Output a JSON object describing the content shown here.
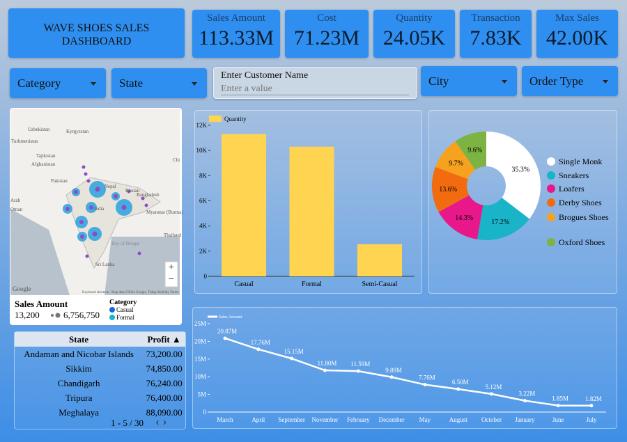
{
  "header": {
    "title": "WAVE SHOES SALES DASHBOARD"
  },
  "kpis": [
    {
      "label": "Sales Amount",
      "value": "113.33M"
    },
    {
      "label": "Cost",
      "value": "71.23M"
    },
    {
      "label": "Quantity",
      "value": "24.05K"
    },
    {
      "label": "Transaction",
      "value": "7.83K"
    },
    {
      "label": "Max Sales",
      "value": "42.00K"
    }
  ],
  "filters": {
    "category": "Category",
    "state": "State",
    "customer_label": "Enter Customer Name",
    "customer_placeholder": "Enter a value",
    "city": "City",
    "order_type": "Order Type"
  },
  "map": {
    "places": [
      "Uzbekistan",
      "Kyrgyzstan",
      "Turkmenistan",
      "Tajikistan",
      "Afghanistan",
      "Pakistan",
      "Nepal",
      "Bhutan",
      "Bangladesh",
      "India",
      "Myanmar (Burma)",
      "Thailand",
      "Bay of Bengal",
      "Sri Lanka",
      "Arab",
      "Oman",
      "Chi",
      "Google",
      "Keyboard shortcuts",
      "Map data ©2024 Google, TMap Mobility",
      "Terms"
    ],
    "size_title": "Sales Amount",
    "size_min": "13,200",
    "size_max": "6,756,750",
    "color_title": "Category",
    "color_items": [
      {
        "name": "Casual",
        "color": "#1565e0"
      },
      {
        "name": "Formal",
        "color": "#18b5c8"
      }
    ]
  },
  "table": {
    "columns": [
      "State",
      "Profit ▲"
    ],
    "rows": [
      [
        "Andaman and Nicobar Islands",
        "73,200.00"
      ],
      [
        "Sikkim",
        "74,850.00"
      ],
      [
        "Chandigarh",
        "76,240.00"
      ],
      [
        "Tripura",
        "76,400.00"
      ],
      [
        "Meghalaya",
        "88,090.00"
      ]
    ],
    "pager": "1 - 5 / 30"
  },
  "chart_data": [
    {
      "type": "bar",
      "categories": [
        "Casual",
        "Formal",
        "Semi-Casual"
      ],
      "series": [
        {
          "name": "Quantity",
          "color": "#ffd451",
          "values": [
            11300,
            10300,
            2550
          ]
        }
      ],
      "ylim": [
        0,
        12000
      ],
      "yticks": [
        0,
        {
          "value": 2000,
          "label": "2K"
        },
        {
          "value": 4000,
          "label": "4K"
        },
        {
          "value": 6000,
          "label": "6K"
        },
        {
          "value": 8000,
          "label": "8K"
        },
        {
          "value": 10000,
          "label": "10K"
        },
        {
          "value": 12000,
          "label": "12K"
        }
      ]
    },
    {
      "type": "pie",
      "categories": [
        "Single Monk",
        "Sneakers",
        "Loafers",
        "Derby Shoes",
        "Brogues Shoes",
        "Oxford Shoes"
      ],
      "values": [
        35.3,
        17.2,
        14.3,
        13.6,
        9.7,
        9.6
      ],
      "value_labels": [
        "35.3%",
        "17.2%",
        "14.3%",
        "13.6%",
        "9.7%",
        "9.6%"
      ],
      "colors": [
        "#ffffff",
        "#1ab4c8",
        "#e8178a",
        "#f26b0f",
        "#f6a21e",
        "#7cb342"
      ]
    },
    {
      "type": "line",
      "categories": [
        "March",
        "April",
        "September",
        "November",
        "February",
        "December",
        "May",
        "August",
        "October",
        "January",
        "June",
        "July"
      ],
      "series": [
        {
          "name": "Sales Amount",
          "color": "#ffffff",
          "values": [
            20870000,
            17760000,
            15150000,
            11800000,
            11590000,
            9890000,
            7760000,
            6500000,
            5120000,
            3220000,
            1850000,
            1820000
          ],
          "value_labels": [
            "20.87M",
            "17.76M",
            "15.15M",
            "11.80M",
            "11.59M",
            "9.89M",
            "7.76M",
            "6.50M",
            "5.12M",
            "3.22M",
            "1.85M",
            "1.82M"
          ]
        }
      ],
      "ylim": [
        0,
        25000000
      ],
      "yticks": [
        0,
        {
          "value": 5000000,
          "label": "5M"
        },
        {
          "value": 10000000,
          "label": "10M"
        },
        {
          "value": 15000000,
          "label": "15M"
        },
        {
          "value": 20000000,
          "label": "20M"
        },
        {
          "value": 25000000,
          "label": "25M"
        }
      ]
    }
  ]
}
